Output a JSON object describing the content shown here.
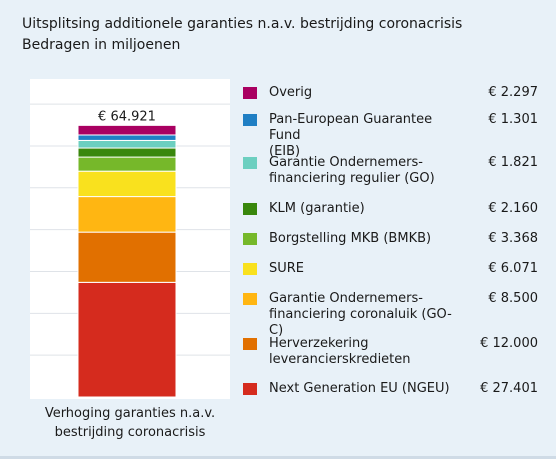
{
  "title": {
    "line1": "Uitsplitsing additionele garanties n.a.v. bestrijding coronacrisis",
    "line2": "Bedragen in miljoenen"
  },
  "chart_data": {
    "type": "bar",
    "stacked": true,
    "categories": [
      "Verhoging garanties n.a.v. bestrijding coronacrisis"
    ],
    "xlabel_lines": [
      "Verhoging garanties n.a.v.",
      "bestrijding coronacrisis"
    ],
    "total_label": "€ 64.921",
    "ylim": [
      0,
      76000
    ],
    "grid": true,
    "legend_position": "right",
    "series": [
      {
        "name": "Next Generation EU (NGEU)",
        "value": 27401,
        "value_label": "€ 27.401",
        "color": "#d52b1e"
      },
      {
        "name": "Herverzekering leveranciers­kredieten",
        "value": 12000,
        "value_label": "€ 12.000",
        "color": "#e17000"
      },
      {
        "name": "Garantie Ondernemers­financiering coronaluik (GO-C)",
        "value": 8500,
        "value_label": "€ 8.500",
        "color": "#ffb612"
      },
      {
        "name": "SURE",
        "value": 6071,
        "value_label": "€ 6.071",
        "color": "#f9e11e"
      },
      {
        "name": "Borgstelling MKB (BMKB)",
        "value": 3368,
        "value_label": "€ 3.368",
        "color": "#76b82a"
      },
      {
        "name": "KLM (garantie)",
        "value": 2160,
        "value_label": "€ 2.160",
        "color": "#39870c"
      },
      {
        "name": "Garantie Ondernemers­financiering regulier (GO)",
        "value": 1821,
        "value_label": "€ 1.821",
        "color": "#6ccfc0"
      },
      {
        "name": "Pan-European Guarantee Fund (EIB)",
        "value": 1301,
        "value_label": "€ 1.301",
        "color": "#1f7fc4"
      },
      {
        "name": "Overig",
        "value": 2297,
        "value_label": "€ 2.297",
        "color": "#a90061"
      }
    ]
  },
  "legend": [
    {
      "line1": "Overig",
      "line2": "",
      "value": "€ 2.297",
      "color": "#a90061"
    },
    {
      "line1": "Pan-European Guarantee Fund",
      "line2": "(EIB)",
      "value": "€ 1.301",
      "color": "#1f7fc4"
    },
    {
      "line1": "Garantie Ondernemers-",
      "line2": "financiering regulier (GO)",
      "value": "€ 1.821",
      "color": "#6ccfc0"
    },
    {
      "line1": "KLM (garantie)",
      "line2": "",
      "value": "€ 2.160",
      "color": "#39870c"
    },
    {
      "line1": "Borgstelling MKB (BMKB)",
      "line2": "",
      "value": "€ 3.368",
      "color": "#76b82a"
    },
    {
      "line1": "SURE",
      "line2": "",
      "value": "€ 6.071",
      "color": "#f9e11e"
    },
    {
      "line1": "Garantie Ondernemers-",
      "line2": "financiering coronaluik (GO-C)",
      "value": "€ 8.500",
      "color": "#ffb612"
    },
    {
      "line1": "Herverzekering",
      "line2": "leverancierskredieten",
      "value": "€ 12.000",
      "color": "#e17000"
    },
    {
      "line1": "Next Generation EU (NGEU)",
      "line2": "",
      "value": "€ 27.401",
      "color": "#d52b1e"
    }
  ]
}
